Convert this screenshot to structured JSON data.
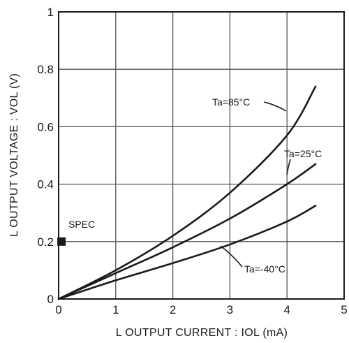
{
  "chart_data": {
    "type": "line",
    "xlabel": "L  OUTPUT  CURRENT : IOL (mA)",
    "ylabel": "L  OUTPUT  VOLTAGE : VOL (V)",
    "xlim": [
      0,
      5
    ],
    "ylim": [
      0,
      1
    ],
    "xticks": [
      "0",
      "1",
      "2",
      "3",
      "4",
      "5"
    ],
    "yticks": [
      "0",
      "0.2",
      "0.4",
      "0.6",
      "0.8",
      "1"
    ],
    "grid": true,
    "series": [
      {
        "name": "Ta=85°C",
        "x": [
          0,
          1,
          2,
          3,
          4,
          4.5
        ],
        "y": [
          0,
          0.1,
          0.22,
          0.37,
          0.57,
          0.74
        ]
      },
      {
        "name": "Ta=25°C",
        "x": [
          0,
          1,
          2,
          3,
          4,
          4.5
        ],
        "y": [
          0,
          0.09,
          0.18,
          0.28,
          0.4,
          0.47
        ]
      },
      {
        "name": "Ta=-40°C",
        "x": [
          0,
          1,
          2,
          3,
          4,
          4.5
        ],
        "y": [
          0,
          0.065,
          0.125,
          0.19,
          0.27,
          0.325
        ]
      }
    ],
    "spec": {
      "label": "SPEC",
      "x": 0.05,
      "y": 0.2
    }
  }
}
